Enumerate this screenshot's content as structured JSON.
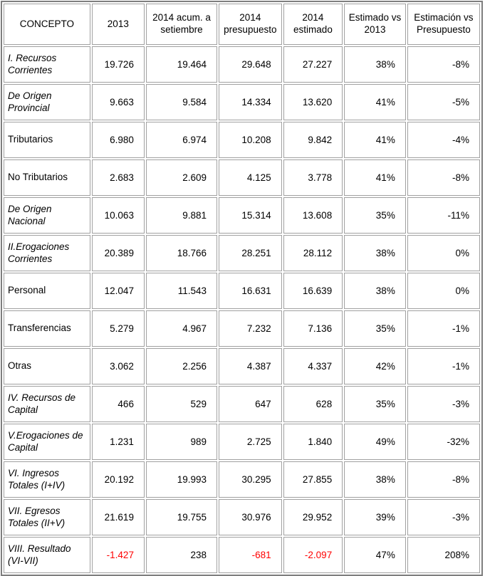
{
  "chart_data": {
    "type": "table",
    "columns": [
      "CONCEPTO",
      "2013",
      "2014 acum. a setiembre",
      "2014 presupuesto",
      "2014 estimado",
      "Estimado vs 2013",
      "Estimación vs Presupuesto"
    ],
    "rows": [
      {
        "label": "I. Recursos Corrientes",
        "italic": true,
        "values": [
          "19.726",
          "19.464",
          "29.648",
          "27.227",
          "38%",
          "-8%"
        ],
        "red_indices": []
      },
      {
        "label": "De Origen Provincial",
        "italic": true,
        "values": [
          "9.663",
          "9.584",
          "14.334",
          "13.620",
          "41%",
          "-5%"
        ],
        "red_indices": []
      },
      {
        "label": "Tributarios",
        "italic": false,
        "values": [
          "6.980",
          "6.974",
          "10.208",
          "9.842",
          "41%",
          "-4%"
        ],
        "red_indices": []
      },
      {
        "label": "No Tributarios",
        "italic": false,
        "values": [
          "2.683",
          "2.609",
          "4.125",
          "3.778",
          "41%",
          "-8%"
        ],
        "red_indices": []
      },
      {
        "label": "De Origen Nacional",
        "italic": true,
        "values": [
          "10.063",
          "9.881",
          "15.314",
          "13.608",
          "35%",
          "-11%"
        ],
        "red_indices": []
      },
      {
        "label": "II.Erogaciones Corrientes",
        "italic": true,
        "values": [
          "20.389",
          "18.766",
          "28.251",
          "28.112",
          "38%",
          "0%"
        ],
        "red_indices": []
      },
      {
        "label": "Personal",
        "italic": false,
        "values": [
          "12.047",
          "11.543",
          "16.631",
          "16.639",
          "38%",
          "0%"
        ],
        "red_indices": []
      },
      {
        "label": "Transferencias",
        "italic": false,
        "values": [
          "5.279",
          "4.967",
          "7.232",
          "7.136",
          "35%",
          "-1%"
        ],
        "red_indices": []
      },
      {
        "label": "Otras",
        "italic": false,
        "values": [
          "3.062",
          "2.256",
          "4.387",
          "4.337",
          "42%",
          "-1%"
        ],
        "red_indices": []
      },
      {
        "label": "IV. Recursos de Capital",
        "italic": true,
        "values": [
          "466",
          "529",
          "647",
          "628",
          "35%",
          "-3%"
        ],
        "red_indices": []
      },
      {
        "label": "V.Erogaciones de Capital",
        "italic": true,
        "values": [
          "1.231",
          "989",
          "2.725",
          "1.840",
          "49%",
          "-32%"
        ],
        "red_indices": []
      },
      {
        "label": "VI. Ingresos Totales (I+IV)",
        "italic": true,
        "values": [
          "20.192",
          "19.993",
          "30.295",
          "27.855",
          "38%",
          "-8%"
        ],
        "red_indices": []
      },
      {
        "label": "VII. Egresos Totales (II+V)",
        "italic": true,
        "values": [
          "21.619",
          "19.755",
          "30.976",
          "29.952",
          "39%",
          "-3%"
        ],
        "red_indices": []
      },
      {
        "label": "VIII. Resultado (VI-VII)",
        "italic": true,
        "values": [
          "-1.427",
          "238",
          "-681",
          "-2.097",
          "47%",
          "208%"
        ],
        "red_indices": [
          0,
          2,
          3
        ]
      }
    ]
  },
  "colors": {
    "negative_value": "#ff0000",
    "text": "#000000",
    "cell_border": "#a0a0a0",
    "outer_border": "#7e7e7e",
    "background": "#ffffff"
  }
}
